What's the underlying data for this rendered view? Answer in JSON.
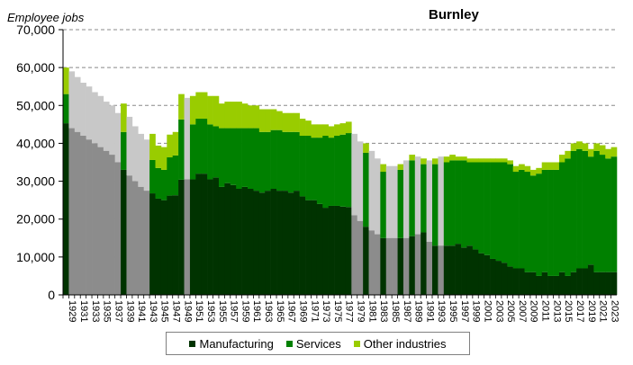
{
  "chart_data": {
    "type": "bar",
    "stacked": true,
    "title": "Burnley",
    "xlabel": "",
    "ylabel": "Employee jobs",
    "ylim": [
      0,
      70000
    ],
    "yticks": [
      "0",
      "10,000",
      "20,000",
      "30,000",
      "40,000",
      "50,000",
      "60,000",
      "70,000"
    ],
    "grid": "horizontal dashed",
    "legend_position": "bottom",
    "colors": {
      "Manufacturing": "#003300",
      "Services": "#008000",
      "Other industries": "#99cc00",
      "estimated_total": "#c8c8c8",
      "estimated_manufacturing": "#8c8c8c"
    },
    "categories": [
      1929,
      1930,
      1931,
      1932,
      1933,
      1934,
      1935,
      1936,
      1937,
      1938,
      1939,
      1940,
      1941,
      1942,
      1943,
      1944,
      1945,
      1946,
      1947,
      1948,
      1949,
      1950,
      1951,
      1952,
      1953,
      1954,
      1955,
      1956,
      1957,
      1958,
      1959,
      1960,
      1961,
      1962,
      1963,
      1964,
      1965,
      1966,
      1967,
      1968,
      1969,
      1970,
      1971,
      1972,
      1973,
      1974,
      1975,
      1976,
      1977,
      1978,
      1979,
      1980,
      1981,
      1982,
      1983,
      1984,
      1985,
      1986,
      1987,
      1988,
      1989,
      1990,
      1991,
      1992,
      1993,
      1994,
      1995,
      1996,
      1997,
      1998,
      1999,
      2000,
      2001,
      2002,
      2003,
      2004,
      2005,
      2006,
      2007,
      2008,
      2009,
      2010,
      2011,
      2012,
      2013,
      2014,
      2015,
      2016,
      2017,
      2018,
      2019,
      2020,
      2021,
      2022,
      2023,
      2024
    ],
    "estimated": [
      false,
      true,
      true,
      true,
      true,
      true,
      true,
      true,
      true,
      true,
      false,
      true,
      true,
      true,
      true,
      false,
      false,
      false,
      false,
      false,
      false,
      true,
      false,
      false,
      false,
      false,
      false,
      false,
      false,
      false,
      false,
      false,
      false,
      false,
      false,
      false,
      false,
      false,
      false,
      false,
      false,
      false,
      false,
      false,
      false,
      false,
      false,
      false,
      false,
      false,
      true,
      true,
      false,
      true,
      true,
      false,
      true,
      true,
      false,
      true,
      false,
      true,
      false,
      true,
      false,
      true,
      false,
      false,
      false,
      false,
      false,
      false,
      false,
      false,
      false,
      false,
      false,
      false,
      false,
      false,
      false,
      false,
      false,
      false,
      false,
      false,
      false,
      false,
      false,
      false,
      false,
      false,
      false,
      false,
      false,
      false
    ],
    "series": [
      {
        "name": "Manufacturing",
        "values": [
          45300,
          44000,
          43000,
          42000,
          41000,
          40000,
          39000,
          38000,
          37000,
          35000,
          33000,
          31500,
          30000,
          28500,
          27500,
          26800,
          25400,
          25000,
          26200,
          26300,
          30400,
          30500,
          30500,
          32000,
          32000,
          30500,
          31000,
          28500,
          29500,
          29000,
          28000,
          28500,
          28000,
          27500,
          27000,
          27500,
          28000,
          27500,
          27500,
          27000,
          27500,
          26000,
          25000,
          25000,
          24000,
          23000,
          23500,
          23500,
          23300,
          23200,
          21000,
          19500,
          18000,
          17000,
          16000,
          15000,
          15000,
          15000,
          15000,
          15000,
          15500,
          16000,
          16500,
          14000,
          13000,
          13000,
          13000,
          13000,
          13500,
          12500,
          13000,
          12000,
          11000,
          10500,
          9500,
          9000,
          8500,
          7500,
          7000,
          7000,
          6000,
          6000,
          5000,
          6000,
          5000,
          5000,
          6000,
          5000,
          6000,
          7000,
          7000,
          8000,
          6000,
          6000,
          6000,
          6000
        ]
      },
      {
        "name": "Services",
        "values": [
          7700,
          7500,
          7500,
          7500,
          7500,
          7500,
          7500,
          7500,
          7500,
          7500,
          10000,
          9000,
          9000,
          9000,
          8800,
          8800,
          8100,
          8000,
          10100,
          10500,
          15900,
          15500,
          14500,
          14500,
          14500,
          14500,
          13500,
          15500,
          14500,
          15000,
          16000,
          15500,
          16000,
          16500,
          16000,
          15500,
          15500,
          16000,
          15500,
          16000,
          15500,
          16000,
          17000,
          16500,
          17500,
          19000,
          18000,
          18500,
          19000,
          19500,
          19000,
          19000,
          19500,
          19000,
          18000,
          17500,
          17500,
          17500,
          18000,
          19000,
          20000,
          19000,
          18000,
          20000,
          21500,
          22000,
          22000,
          22500,
          22000,
          23000,
          22000,
          23000,
          24000,
          24500,
          25500,
          26000,
          26500,
          27000,
          25500,
          26000,
          26500,
          25500,
          27000,
          27000,
          28000,
          28000,
          29000,
          31000,
          32000,
          31500,
          31000,
          28500,
          32000,
          31000,
          30000,
          30500
        ]
      },
      {
        "name": "Other industries",
        "values": [
          7000,
          7500,
          7000,
          6500,
          6500,
          6000,
          6000,
          5500,
          5500,
          5500,
          7500,
          6500,
          5500,
          5000,
          4700,
          6900,
          5900,
          6000,
          6000,
          6200,
          6700,
          6000,
          7500,
          7000,
          7000,
          7500,
          8000,
          6500,
          7000,
          7000,
          7000,
          6500,
          6000,
          6000,
          6000,
          6000,
          5500,
          5000,
          5000,
          5000,
          5000,
          4500,
          4000,
          3500,
          3500,
          3000,
          3000,
          3000,
          3000,
          3000,
          2500,
          2000,
          2500,
          2000,
          2000,
          2000,
          1500,
          1500,
          1500,
          1500,
          1500,
          1500,
          1500,
          1500,
          1500,
          1500,
          1500,
          1500,
          1000,
          1000,
          1000,
          1000,
          1000,
          1000,
          1000,
          1000,
          1000,
          1000,
          1500,
          1500,
          1500,
          1500,
          1500,
          2000,
          2000,
          2000,
          2000,
          2000,
          2000,
          2000,
          2000,
          2000,
          2000,
          2500,
          2500,
          2500
        ]
      }
    ]
  },
  "labels": {
    "ylabel": "Employee jobs",
    "title": "Burnley",
    "legend": [
      "Manufacturing",
      "Services",
      "Other industries"
    ]
  }
}
